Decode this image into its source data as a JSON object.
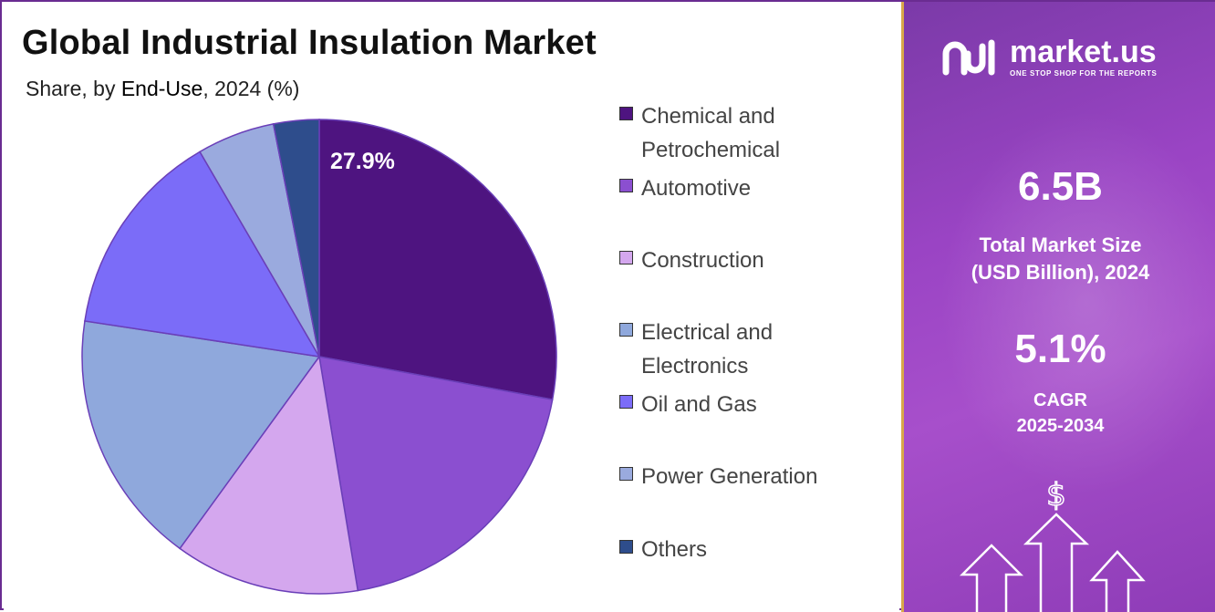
{
  "header": {
    "title": "Global Industrial Insulation Market",
    "subtitle_prefix": "Share, by ",
    "subtitle_bold": "End-Use",
    "subtitle_suffix": ", 2024 (%)"
  },
  "chart_data": {
    "type": "pie",
    "title": "Global Industrial Insulation Market",
    "subtitle": "Share, by End-Use, 2024 (%)",
    "labels": [
      "Chemical and Petrochemical",
      "Automotive",
      "Construction",
      "Electrical and Electronics",
      "Oil and Gas",
      "Power Generation",
      "Others"
    ],
    "values": [
      27.9,
      19.5,
      12.6,
      17.4,
      14.2,
      5.3,
      3.1
    ],
    "colors": [
      "#4e1480",
      "#8b4fd0",
      "#d4a7ee",
      "#8fa8dc",
      "#7b6cf8",
      "#9aaade",
      "#2e4d8c"
    ],
    "data_labels": [
      "27.9%",
      "",
      "",
      "",
      "",
      "",
      ""
    ],
    "legend_position": "right"
  },
  "sidebar": {
    "brand_name": "market.us",
    "brand_tagline": "ONE STOP SHOP FOR THE REPORTS",
    "market_size_value": "6.5B",
    "market_size_label_1": "Total Market Size",
    "market_size_label_2": "(USD Billion), 2024",
    "cagr_value": "5.1%",
    "cagr_label_1": "CAGR",
    "cagr_label_2": "2025-2034",
    "currency_symbol": "$"
  }
}
